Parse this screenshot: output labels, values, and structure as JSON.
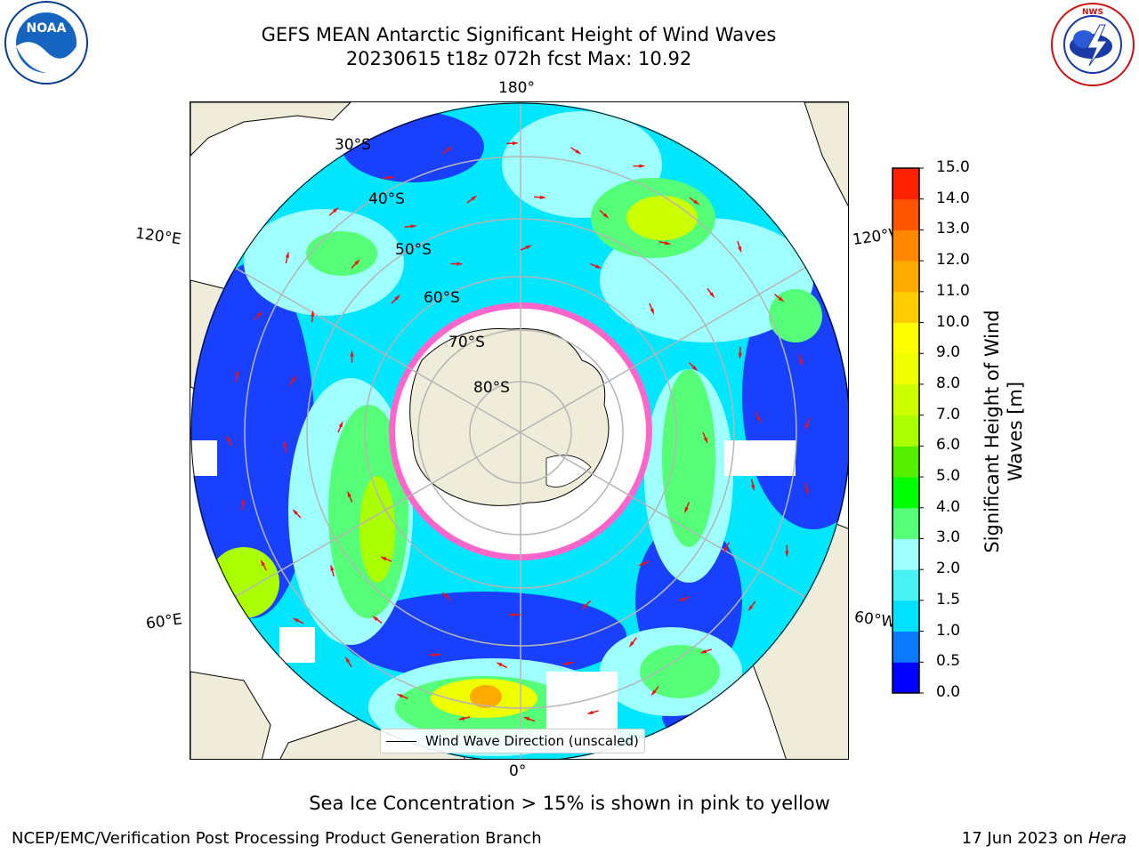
{
  "header": {
    "title_line1": "GEFS MEAN Antarctic Significant Height of Wind Waves",
    "title_line2": "20230615 t18z 072h fcst   Max: 10.92"
  },
  "logos": {
    "left": {
      "name": "NOAA",
      "text": "NOAA",
      "ring_text": "NATIONAL OCEANIC AND ATMOSPHERIC ADMINISTRATION · U.S. DEPARTMENT OF COMMERCE"
    },
    "right": {
      "name": "National Weather Service",
      "ring_text": "NATIONAL WEATHER SERVICE"
    }
  },
  "map": {
    "projection": "south-polar-stereographic",
    "longitude_labels": {
      "top": "180°",
      "bottom": "0°",
      "upper_left": "120°E",
      "lower_left": "60°E",
      "upper_right": "120°W",
      "lower_right": "60°W"
    },
    "latitude_labels": [
      "30°S",
      "40°S",
      "50°S",
      "60°S",
      "70°S",
      "80°S"
    ],
    "legend_label": "Wind Wave Direction (unscaled)",
    "colors": {
      "land": "#efedda",
      "graticule": "#b5b5b5",
      "arrows": "#ee1111",
      "no_data": "#ffffff",
      "sea_ice": "#ff66cc"
    }
  },
  "colorbar": {
    "label": "Significant Height of Wind Waves [m]",
    "tick_labels": [
      "0.0",
      "0.5",
      "1.0",
      "1.5",
      "2.0",
      "3.0",
      "4.0",
      "5.0",
      "6.0",
      "7.0",
      "8.0",
      "9.0",
      "10.0",
      "11.0",
      "12.0",
      "13.0",
      "14.0",
      "15.0"
    ],
    "colors": [
      "#0000ff",
      "#0a78ff",
      "#00e0ff",
      "#46f2f2",
      "#a0ffff",
      "#55ff77",
      "#00ff00",
      "#55ee00",
      "#aaff00",
      "#ccff00",
      "#eeff00",
      "#ffff00",
      "#ffcc00",
      "#ffaa00",
      "#ff8800",
      "#ff5500",
      "#ff2200",
      "#ff0000"
    ]
  },
  "note": "Sea Ice Concentration > 15% is shown in pink to yellow",
  "footer": {
    "left": "NCEP/EMC/Verification Post Processing Product Generation Branch",
    "right_date": "17 Jun 2023 on",
    "right_host": "Hera"
  }
}
